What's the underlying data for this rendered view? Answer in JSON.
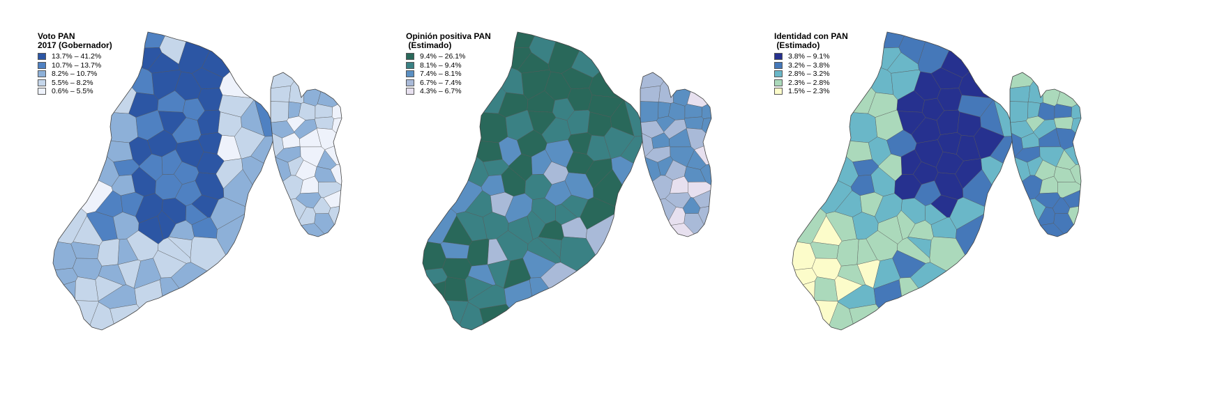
{
  "maps": [
    {
      "id": "voto",
      "title": "Voto PAN\n2017 (Gobernador)",
      "legend": [
        {
          "label": "13.7% – 41.2%",
          "color": "#2c56a4"
        },
        {
          "label": "10.7% – 13.7%",
          "color": "#4f81c2"
        },
        {
          "label": "8.2% – 10.7%",
          "color": "#8db0d8"
        },
        {
          "label": "5.5% – 8.2%",
          "color": "#c5d6ea"
        },
        {
          "label": "0.6% – 5.5%",
          "color": "#eef2fb"
        }
      ]
    },
    {
      "id": "opinion",
      "title": "Opinión positiva PAN\n (Estimado)",
      "legend": [
        {
          "label": "9.4% – 26.1%",
          "color": "#29685a"
        },
        {
          "label": "8.1% – 9.4%",
          "color": "#3a8184"
        },
        {
          "label": "7.4% – 8.1%",
          "color": "#5a8fc2"
        },
        {
          "label": "6.7% – 7.4%",
          "color": "#a9bad8"
        },
        {
          "label": "4.3% – 6.7%",
          "color": "#e7e0ef"
        }
      ]
    },
    {
      "id": "identidad",
      "title": "Identidad con PAN\n (Estimado)",
      "legend": [
        {
          "label": "3.8% – 9.1%",
          "color": "#26318f"
        },
        {
          "label": "3.2% – 3.8%",
          "color": "#4578b9"
        },
        {
          "label": "2.8% – 3.2%",
          "color": "#6ab7c8"
        },
        {
          "label": "2.3% – 2.8%",
          "color": "#abd9bb"
        },
        {
          "label": "1.5% – 2.3%",
          "color": "#fcfcca"
        }
      ]
    }
  ]
}
